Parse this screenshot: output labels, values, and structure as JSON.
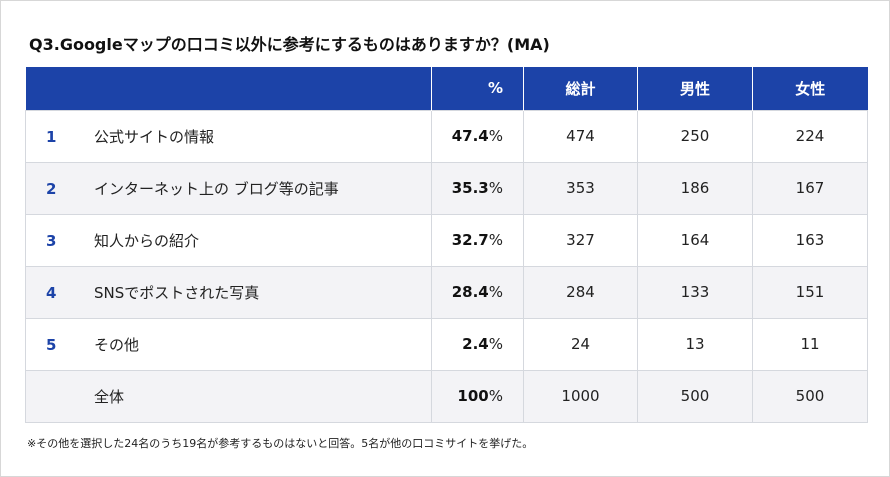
{
  "title": "Q3.Googleマップの口コミ以外に参考にするものはありますか？(MA)",
  "table": {
    "headers": {
      "item": "",
      "percent": "%",
      "total": "総計",
      "male": "男性",
      "female": "女性"
    },
    "rows": [
      {
        "rank": "1",
        "label": "公式サイトの情報",
        "pct": "47.4",
        "pct_sign": "%",
        "total": "474",
        "male": "250",
        "female": "224"
      },
      {
        "rank": "2",
        "label": "インターネット上の ブログ等の記事",
        "pct": "35.3",
        "pct_sign": "%",
        "total": "353",
        "male": "186",
        "female": "167"
      },
      {
        "rank": "3",
        "label": "知人からの紹介",
        "pct": "32.7",
        "pct_sign": "%",
        "total": "327",
        "male": "164",
        "female": "163"
      },
      {
        "rank": "4",
        "label": "SNSでポストされた写真",
        "pct": "28.4",
        "pct_sign": "%",
        "total": "284",
        "male": "133",
        "female": "151"
      },
      {
        "rank": "5",
        "label": "その他",
        "pct": "2.4",
        "pct_sign": "%",
        "total": "24",
        "male": "13",
        "female": "11"
      },
      {
        "rank": "",
        "label": "全体",
        "pct": "100",
        "pct_sign": "%",
        "total": "1000",
        "male": "500",
        "female": "500"
      }
    ]
  },
  "footnote": "※その他を選択した24名のうち19名が参考するものはないと回答。5名が他の口コミサイトを挙げた。",
  "colors": {
    "header_bg": "#1c43a8",
    "rank_text": "#1c43a8",
    "alt_row_bg": "#f3f3f6"
  }
}
